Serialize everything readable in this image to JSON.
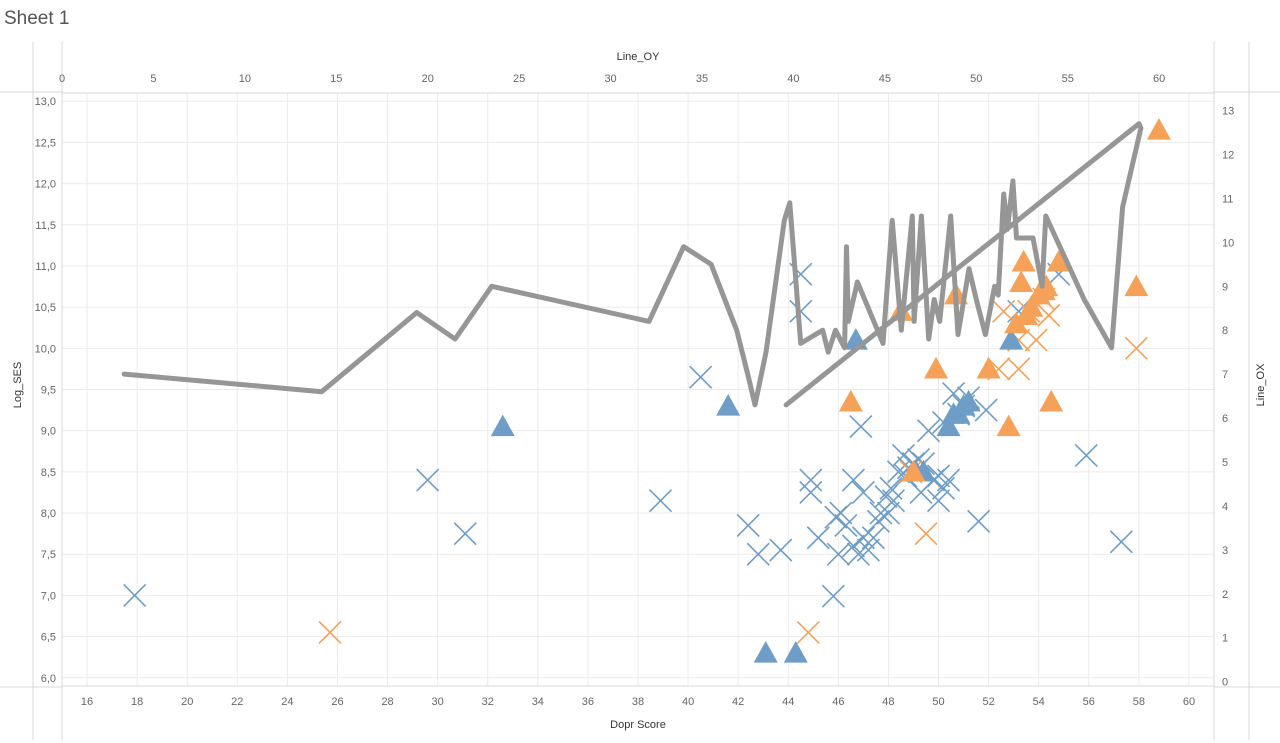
{
  "sheet_title": "Sheet 1",
  "colors": {
    "blue": "#6E9DC7",
    "orange": "#F5A157",
    "line": "#969696",
    "grid": "#EBEBEB",
    "axis": "#D9D9D9"
  },
  "chart_data": {
    "type": "scatter",
    "x_axis_bottom": {
      "title": "Dopr Score",
      "range": [
        15,
        61
      ],
      "ticks": [
        "16",
        "18",
        "20",
        "22",
        "24",
        "26",
        "28",
        "30",
        "32",
        "34",
        "36",
        "38",
        "40",
        "42",
        "44",
        "46",
        "48",
        "50",
        "52",
        "54",
        "56",
        "58",
        "60"
      ]
    },
    "x_axis_top": {
      "title": "Line_OY",
      "range": [
        0,
        63
      ],
      "ticks": [
        "0",
        "5",
        "10",
        "15",
        "20",
        "25",
        "30",
        "35",
        "40",
        "45",
        "50",
        "55",
        "60"
      ]
    },
    "y_axis_left": {
      "title": "Log_SES",
      "range": [
        5.9,
        13.1
      ],
      "ticks": [
        "6,0",
        "6,5",
        "7,0",
        "7,5",
        "8,0",
        "8,5",
        "9,0",
        "9,5",
        "10,0",
        "10,5",
        "11,0",
        "11,5",
        "12,0",
        "12,5",
        "13,0"
      ]
    },
    "y_axis_right": {
      "title": "Line_OX",
      "range": [
        -0.1,
        13.4
      ],
      "ticks": [
        "0",
        "1",
        "2",
        "3",
        "4",
        "5",
        "6",
        "7",
        "8",
        "9",
        "10",
        "11",
        "12",
        "13"
      ]
    },
    "grid": true,
    "legend": "none",
    "series": [
      {
        "marker": "x",
        "color": "blue",
        "x": [
          17.9,
          29.6,
          31.1,
          38.9,
          40.5,
          42.4,
          42.8,
          43.7,
          44.5,
          44.5,
          44.9,
          44.9,
          45.2,
          45.8,
          45.9,
          46.0,
          46.1,
          46.3,
          46.6,
          46.6,
          46.8,
          46.9,
          47.0,
          47.0,
          47.2,
          47.4,
          47.6,
          47.7,
          47.9,
          48.0,
          48.1,
          48.2,
          48.4,
          48.6,
          48.8,
          49.0,
          49.2,
          49.4,
          49.6,
          49.8,
          50.0,
          50.2,
          50.2,
          50.4,
          50.6,
          50.8,
          51.0,
          51.2,
          51.6,
          51.9,
          53.2,
          54.8,
          55.9,
          57.3,
          50.0,
          48.7,
          49.3
        ],
        "y": [
          7.0,
          8.4,
          7.75,
          8.15,
          9.65,
          7.85,
          7.5,
          7.55,
          10.9,
          10.45,
          8.4,
          8.25,
          7.7,
          6.99,
          7.95,
          7.5,
          8.0,
          7.85,
          8.4,
          7.6,
          7.5,
          9.05,
          7.7,
          8.25,
          7.55,
          7.7,
          7.9,
          8.0,
          8.2,
          8.0,
          8.3,
          8.15,
          8.5,
          8.7,
          8.55,
          8.6,
          8.65,
          8.6,
          9.0,
          8.4,
          8.15,
          8.3,
          9.1,
          8.4,
          9.45,
          9.2,
          9.3,
          9.4,
          7.9,
          9.25,
          10.45,
          10.9,
          8.7,
          7.65,
          8.45,
          8.45,
          8.25
        ]
      },
      {
        "marker": "x",
        "color": "orange",
        "x": [
          25.7,
          44.8,
          48.9,
          49.5,
          52.4,
          52.6,
          53.2,
          53.2,
          53.6,
          53.9,
          54.2,
          54.4,
          57.9
        ],
        "y": [
          6.55,
          6.55,
          8.5,
          7.75,
          9.75,
          10.45,
          10.1,
          9.75,
          10.45,
          10.1,
          10.6,
          10.4,
          10.0
        ]
      },
      {
        "marker": "triangle",
        "color": "blue",
        "x": [
          32.6,
          41.6,
          43.1,
          44.3,
          46.7,
          49.1,
          49.4,
          50.4,
          50.6,
          50.8,
          51.0,
          51.2,
          52.9
        ],
        "y": [
          9.05,
          9.3,
          6.3,
          6.3,
          10.1,
          8.5,
          8.5,
          9.05,
          9.2,
          9.2,
          9.3,
          9.35,
          10.1
        ]
      },
      {
        "marker": "triangle",
        "color": "orange",
        "x": [
          46.5,
          48.5,
          49.0,
          49.9,
          50.7,
          52.0,
          52.8,
          53.1,
          53.3,
          53.4,
          53.5,
          53.7,
          54.0,
          54.2,
          54.3,
          54.5,
          54.8,
          57.9,
          58.8
        ],
        "y": [
          9.35,
          10.45,
          8.5,
          9.75,
          10.65,
          9.75,
          9.05,
          10.3,
          10.8,
          11.05,
          10.4,
          10.5,
          10.65,
          10.7,
          10.75,
          9.35,
          11.05,
          10.75,
          12.65
        ]
      },
      {
        "type": "line",
        "color": "line",
        "axes": "top-right",
        "x": [
          3.4,
          14.2,
          19.4,
          21.5,
          23.5,
          32.1,
          34.0,
          35.5,
          36.9,
          37.5,
          37.9,
          38.5,
          39.5,
          39.8,
          40.4,
          41.6,
          41.9,
          42.3,
          42.8,
          42.9,
          43.0,
          43.5,
          44.9,
          45.4,
          45.9,
          46.5,
          46.6,
          47.0,
          47.4,
          47.7,
          48.0,
          48.6,
          49.0,
          49.6,
          50.0,
          50.5,
          51.0,
          51.2,
          51.5,
          51.7,
          52.0,
          52.2,
          53.1,
          53.6,
          53.8,
          55.9,
          57.4,
          58.0,
          59.0,
          58.9,
          39.6
        ],
        "y": [
          7.0,
          6.6,
          8.4,
          7.8,
          9.0,
          8.2,
          9.9,
          9.5,
          8.0,
          7.0,
          6.3,
          7.5,
          10.5,
          10.9,
          7.7,
          8.0,
          7.5,
          8.0,
          7.6,
          9.9,
          8.2,
          9.1,
          7.7,
          10.5,
          8.0,
          10.6,
          8.2,
          10.6,
          7.8,
          8.7,
          8.2,
          10.6,
          7.9,
          9.4,
          8.7,
          7.9,
          9.0,
          8.8,
          11.1,
          10.3,
          11.4,
          10.1,
          10.1,
          9.0,
          10.6,
          8.7,
          7.6,
          10.8,
          12.6,
          12.7,
          6.3
        ]
      }
    ]
  }
}
